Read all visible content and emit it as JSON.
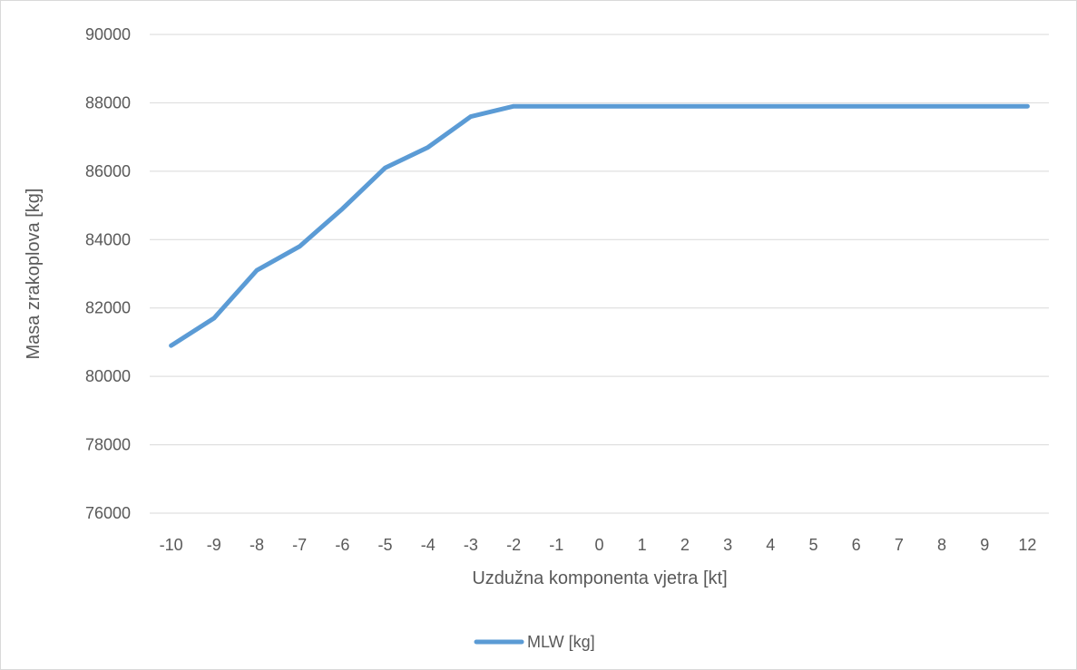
{
  "chart_data": {
    "type": "line",
    "title": "",
    "xlabel": "Uzdužna komponenta vjetra [kt]",
    "ylabel": "Masa zrakoplova [kg]",
    "categories": [
      "-10",
      "-9",
      "-8",
      "-7",
      "-6",
      "-5",
      "-4",
      "-3",
      "-2",
      "-1",
      "0",
      "1",
      "2",
      "3",
      "4",
      "5",
      "6",
      "7",
      "8",
      "9",
      "12"
    ],
    "series": [
      {
        "name": "MLW [kg]",
        "color": "#5b9bd5",
        "values": [
          80900,
          81700,
          83100,
          83800,
          84900,
          86100,
          86700,
          87600,
          87900,
          87900,
          87900,
          87900,
          87900,
          87900,
          87900,
          87900,
          87900,
          87900,
          87900,
          87900,
          87900
        ]
      }
    ],
    "ylim": [
      76000,
      90000
    ],
    "yticks": [
      "76000",
      "78000",
      "80000",
      "82000",
      "84000",
      "86000",
      "88000",
      "90000"
    ],
    "grid": "horizontal",
    "legend_position": "bottom",
    "colors": {
      "gridline": "#d9d9d9",
      "text": "#595959",
      "border": "#d9d9d9"
    }
  }
}
